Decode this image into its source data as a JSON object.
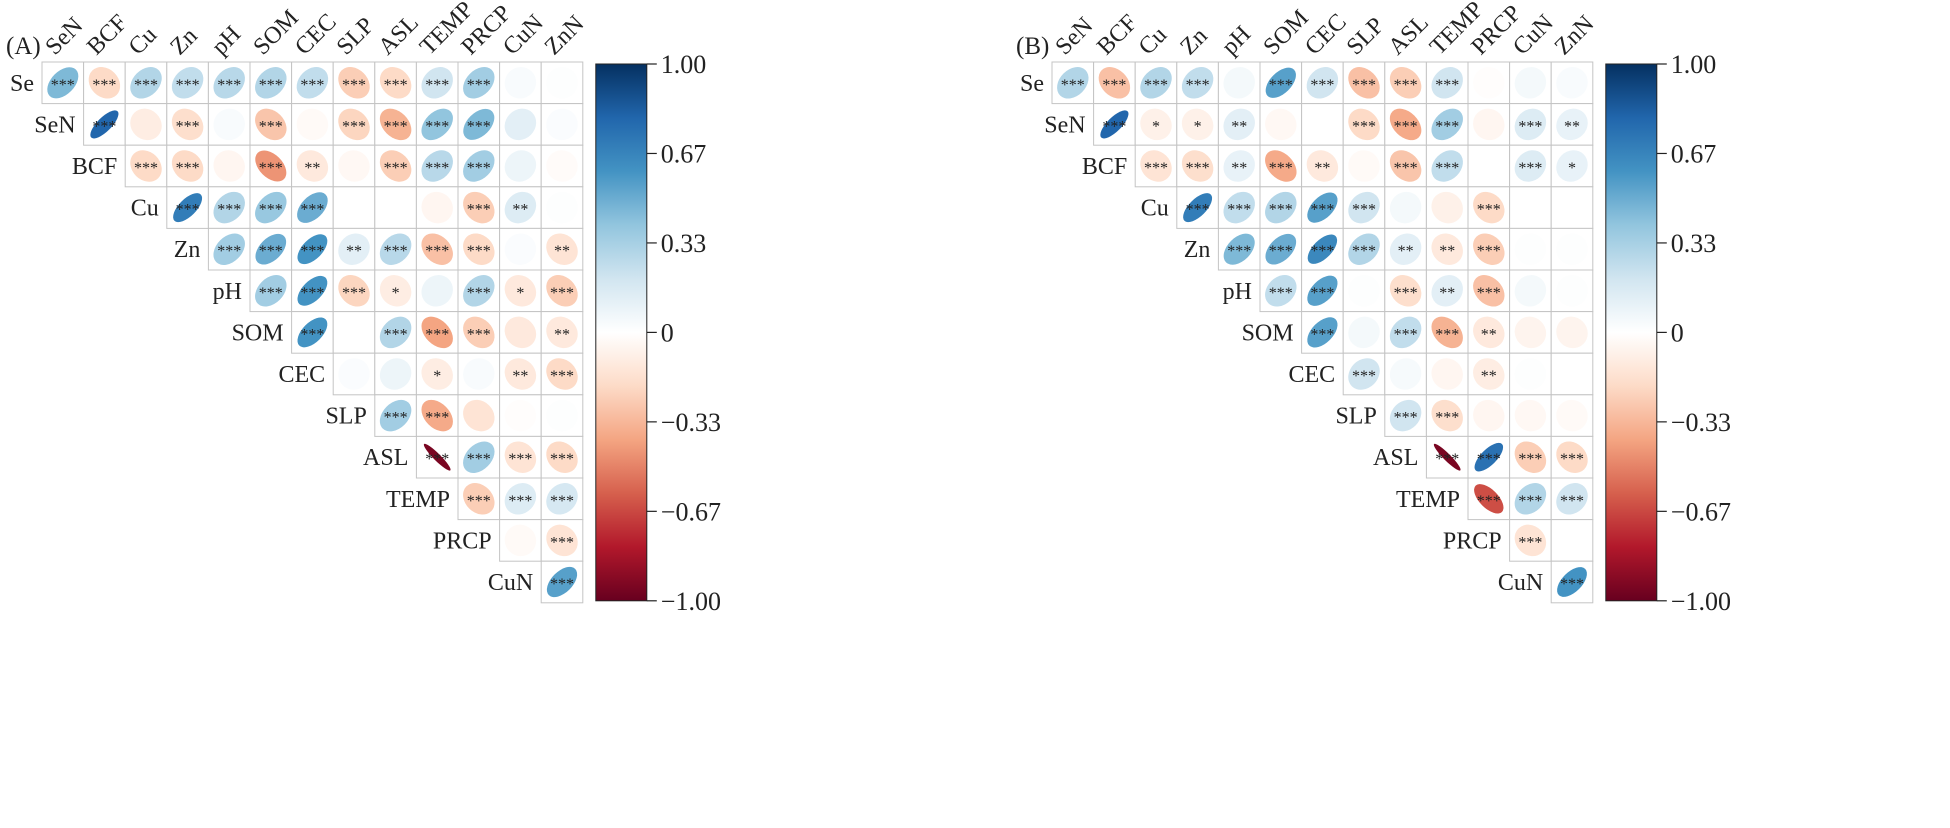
{
  "chart_data": [
    {
      "type": "heatmap",
      "subtype": "correlation-ellipse-upper-triangle",
      "panel_label": "(A)",
      "row_labels": [
        "Se",
        "SeN",
        "BCF",
        "Cu",
        "Zn",
        "pH",
        "SOM",
        "CEC",
        "SLP",
        "ASL",
        "TEMP",
        "PRCP",
        "CuN"
      ],
      "col_labels": [
        "SeN",
        "BCF",
        "Cu",
        "Zn",
        "pH",
        "SOM",
        "CEC",
        "SLP",
        "ASL",
        "TEMP",
        "PRCP",
        "CuN",
        "ZnN"
      ],
      "values": [
        [
          0.45,
          -0.2,
          0.3,
          0.25,
          0.28,
          0.3,
          0.25,
          -0.25,
          -0.2,
          0.2,
          0.35,
          0.03,
          0.01
        ],
        [
          null,
          0.8,
          -0.1,
          -0.18,
          0.03,
          -0.28,
          -0.03,
          -0.22,
          -0.35,
          0.4,
          0.45,
          0.12,
          0.02
        ],
        [
          null,
          null,
          -0.2,
          -0.2,
          -0.05,
          -0.45,
          -0.12,
          -0.04,
          -0.25,
          0.28,
          0.35,
          0.08,
          -0.02
        ],
        [
          null,
          null,
          null,
          0.7,
          0.3,
          0.38,
          0.5,
          0.0,
          0.0,
          -0.05,
          -0.25,
          0.15,
          0.01
        ],
        [
          null,
          null,
          null,
          null,
          0.35,
          0.5,
          0.6,
          0.12,
          0.28,
          -0.3,
          -0.2,
          0.02,
          -0.15
        ],
        [
          null,
          null,
          null,
          null,
          null,
          0.35,
          0.6,
          -0.22,
          -0.1,
          0.08,
          0.3,
          -0.12,
          -0.25
        ],
        [
          null,
          null,
          null,
          null,
          null,
          null,
          0.6,
          0.0,
          0.3,
          -0.4,
          -0.25,
          -0.12,
          -0.12
        ],
        [
          null,
          null,
          null,
          null,
          null,
          null,
          null,
          0.02,
          0.08,
          -0.1,
          0.03,
          -0.12,
          -0.2
        ],
        [
          null,
          null,
          null,
          null,
          null,
          null,
          null,
          null,
          0.35,
          -0.38,
          -0.15,
          -0.01,
          0.01
        ],
        [
          null,
          null,
          null,
          null,
          null,
          null,
          null,
          null,
          null,
          -0.95,
          0.35,
          -0.15,
          -0.2
        ],
        [
          null,
          null,
          null,
          null,
          null,
          null,
          null,
          null,
          null,
          null,
          -0.25,
          0.15,
          0.18
        ],
        [
          null,
          null,
          null,
          null,
          null,
          null,
          null,
          null,
          null,
          null,
          null,
          -0.03,
          -0.15
        ],
        [
          null,
          null,
          null,
          null,
          null,
          null,
          null,
          null,
          null,
          null,
          null,
          null,
          0.55
        ]
      ],
      "significance": [
        [
          "***",
          "***",
          "***",
          "***",
          "***",
          "***",
          "***",
          "***",
          "***",
          "***",
          "***",
          "",
          ""
        ],
        [
          null,
          "***",
          "",
          "***",
          "",
          "***",
          "",
          "***",
          "***",
          "***",
          "***",
          "",
          ""
        ],
        [
          null,
          null,
          "***",
          "***",
          "",
          "***",
          "**",
          "",
          "***",
          "***",
          "***",
          "",
          ""
        ],
        [
          null,
          null,
          null,
          "***",
          "***",
          "***",
          "***",
          "",
          "",
          "",
          "***",
          "**",
          ""
        ],
        [
          null,
          null,
          null,
          null,
          "***",
          "***",
          "***",
          "**",
          "***",
          "***",
          "***",
          "",
          "**"
        ],
        [
          null,
          null,
          null,
          null,
          null,
          "***",
          "***",
          "***",
          "*",
          "",
          "***",
          "*",
          "***"
        ],
        [
          null,
          null,
          null,
          null,
          null,
          null,
          "***",
          "",
          "***",
          "***",
          "***",
          "",
          "**"
        ],
        [
          null,
          null,
          null,
          null,
          null,
          null,
          null,
          "",
          "",
          "*",
          "",
          "**",
          "***"
        ],
        [
          null,
          null,
          null,
          null,
          null,
          null,
          null,
          null,
          "***",
          "***",
          "",
          "",
          ""
        ],
        [
          null,
          null,
          null,
          null,
          null,
          null,
          null,
          null,
          null,
          "***",
          "***",
          "***",
          "***"
        ],
        [
          null,
          null,
          null,
          null,
          null,
          null,
          null,
          null,
          null,
          null,
          "***",
          "***",
          "***"
        ],
        [
          null,
          null,
          null,
          null,
          null,
          null,
          null,
          null,
          null,
          null,
          null,
          "",
          "***"
        ],
        [
          null,
          null,
          null,
          null,
          null,
          null,
          null,
          null,
          null,
          null,
          null,
          null,
          "***"
        ]
      ],
      "colorbar": {
        "ticks": [
          "1.00",
          "0.67",
          "0.33",
          "0",
          "−0.33",
          "−0.67",
          "−1.00"
        ],
        "range": [
          -1,
          1
        ],
        "colormap": "RdBu",
        "colors": [
          "#67001f",
          "#b2182b",
          "#d6604d",
          "#f4a582",
          "#fddbc7",
          "#ffffff",
          "#d1e5f0",
          "#92c5de",
          "#4393c3",
          "#2166ac",
          "#053061"
        ]
      }
    },
    {
      "type": "heatmap",
      "subtype": "correlation-ellipse-upper-triangle",
      "panel_label": "(B)",
      "row_labels": [
        "Se",
        "SeN",
        "BCF",
        "Cu",
        "Zn",
        "pH",
        "SOM",
        "CEC",
        "SLP",
        "ASL",
        "TEMP",
        "PRCP",
        "CuN"
      ],
      "col_labels": [
        "SeN",
        "BCF",
        "Cu",
        "Zn",
        "pH",
        "SOM",
        "CEC",
        "SLP",
        "ASL",
        "TEMP",
        "PRCP",
        "CuN",
        "ZnN"
      ],
      "values": [
        [
          0.3,
          -0.3,
          0.3,
          0.25,
          0.05,
          0.55,
          0.2,
          -0.3,
          -0.25,
          0.2,
          -0.01,
          0.05,
          0.03
        ],
        [
          null,
          0.8,
          -0.08,
          -0.08,
          0.12,
          -0.04,
          0.0,
          -0.2,
          -0.38,
          0.35,
          -0.05,
          0.15,
          0.1
        ],
        [
          null,
          null,
          -0.15,
          -0.18,
          0.1,
          -0.38,
          -0.12,
          -0.03,
          -0.28,
          0.25,
          0.0,
          0.15,
          0.1
        ],
        [
          null,
          null,
          null,
          0.7,
          0.25,
          0.3,
          0.55,
          0.2,
          0.05,
          -0.08,
          -0.2,
          0.0,
          0.0
        ],
        [
          null,
          null,
          null,
          null,
          0.45,
          0.5,
          0.65,
          0.3,
          0.12,
          -0.12,
          -0.25,
          0.01,
          0.01
        ],
        [
          null,
          null,
          null,
          null,
          null,
          0.25,
          0.55,
          0.01,
          -0.18,
          0.12,
          -0.3,
          0.05,
          0.01
        ],
        [
          null,
          null,
          null,
          null,
          null,
          null,
          0.55,
          0.05,
          0.25,
          -0.35,
          -0.12,
          -0.06,
          -0.06
        ],
        [
          null,
          null,
          null,
          null,
          null,
          null,
          null,
          0.2,
          0.04,
          -0.05,
          -0.1,
          0.01,
          0.0
        ],
        [
          null,
          null,
          null,
          null,
          null,
          null,
          null,
          null,
          0.2,
          -0.18,
          -0.05,
          -0.04,
          -0.03
        ],
        [
          null,
          null,
          null,
          null,
          null,
          null,
          null,
          null,
          null,
          -0.95,
          0.75,
          -0.25,
          -0.2
        ],
        [
          null,
          null,
          null,
          null,
          null,
          null,
          null,
          null,
          null,
          null,
          -0.65,
          0.3,
          0.2
        ],
        [
          null,
          null,
          null,
          null,
          null,
          null,
          null,
          null,
          null,
          null,
          null,
          -0.15,
          0.0
        ],
        [
          null,
          null,
          null,
          null,
          null,
          null,
          null,
          null,
          null,
          null,
          null,
          null,
          0.6
        ]
      ],
      "significance": [
        [
          "***",
          "***",
          "***",
          "***",
          "",
          "***",
          "***",
          "***",
          "***",
          "***",
          "",
          "",
          ""
        ],
        [
          null,
          "***",
          "*",
          "*",
          "**",
          "",
          "",
          "***",
          "***",
          "***",
          "",
          "***",
          "**"
        ],
        [
          null,
          null,
          "***",
          "***",
          "**",
          "***",
          "**",
          "",
          "***",
          "***",
          "",
          "***",
          "*"
        ],
        [
          null,
          null,
          null,
          "***",
          "***",
          "***",
          "***",
          "***",
          "",
          "",
          "***",
          "",
          ""
        ],
        [
          null,
          null,
          null,
          null,
          "***",
          "***",
          "***",
          "***",
          "**",
          "**",
          "***",
          "",
          ""
        ],
        [
          null,
          null,
          null,
          null,
          null,
          "***",
          "***",
          "",
          "***",
          "**",
          "***",
          "",
          ""
        ],
        [
          null,
          null,
          null,
          null,
          null,
          null,
          "***",
          "",
          "***",
          "***",
          "**",
          "",
          ""
        ],
        [
          null,
          null,
          null,
          null,
          null,
          null,
          null,
          "***",
          "",
          "",
          "**",
          "",
          ""
        ],
        [
          null,
          null,
          null,
          null,
          null,
          null,
          null,
          null,
          "***",
          "***",
          "",
          "",
          ""
        ],
        [
          null,
          null,
          null,
          null,
          null,
          null,
          null,
          null,
          null,
          "***",
          "***",
          "***",
          "***"
        ],
        [
          null,
          null,
          null,
          null,
          null,
          null,
          null,
          null,
          null,
          null,
          "***",
          "***",
          "***"
        ],
        [
          null,
          null,
          null,
          null,
          null,
          null,
          null,
          null,
          null,
          null,
          null,
          "***",
          ""
        ],
        [
          null,
          null,
          null,
          null,
          null,
          null,
          null,
          null,
          null,
          null,
          null,
          null,
          "***"
        ]
      ],
      "colorbar": {
        "ticks": [
          "1.00",
          "0.67",
          "0.33",
          "0",
          "−0.33",
          "−0.67",
          "−1.00"
        ],
        "range": [
          -1,
          1
        ],
        "colormap": "RdBu",
        "colors": [
          "#67001f",
          "#b2182b",
          "#d6604d",
          "#f4a582",
          "#fddbc7",
          "#ffffff",
          "#d1e5f0",
          "#92c5de",
          "#4393c3",
          "#2166ac",
          "#053061"
        ]
      }
    }
  ]
}
